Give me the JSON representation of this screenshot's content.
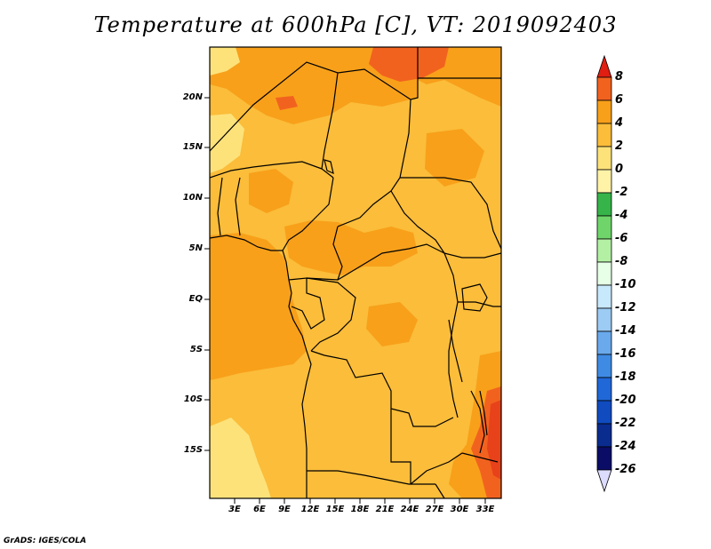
{
  "title": "Temperature at 600hPa [C], VT: 2019092403",
  "credit": "GrADS: IGES/COLA",
  "lat_ticks": [
    "20N",
    "15N",
    "10N",
    "5N",
    "EQ",
    "5S",
    "10S",
    "15S"
  ],
  "lon_ticks": [
    "3E",
    "6E",
    "9E",
    "12E",
    "15E",
    "18E",
    "21E",
    "24E",
    "27E",
    "30E",
    "33E"
  ],
  "colorbar": {
    "labels": [
      "8",
      "6",
      "4",
      "2",
      "0",
      "-2",
      "-4",
      "-6",
      "-8",
      "-10",
      "-12",
      "-14",
      "-16",
      "-18",
      "-20",
      "-22",
      "-24",
      "-26"
    ],
    "colors": [
      "#e8421a",
      "#f2621f",
      "#f8a01a",
      "#fbbd3a",
      "#fde27a",
      "#fff3a8",
      "#36b449",
      "#6fd56a",
      "#b4f0a4",
      "#e6ffe6",
      "#c8e8fb",
      "#9ccbf3",
      "#6aa9ec",
      "#3f8be4",
      "#2068d8",
      "#104bc0",
      "#0a2c8e",
      "#0a0c66"
    ],
    "top_arrow_color": "#e01e12",
    "bottom_arrow_color": "#dcdcff"
  },
  "field_colors": {
    "t0_2": "#fbbd3a",
    "t_neg2_0": "#fde27a",
    "t2_4": "#f8a01a",
    "t4_6": "#f2621f",
    "t6_8": "#e8421a"
  }
}
